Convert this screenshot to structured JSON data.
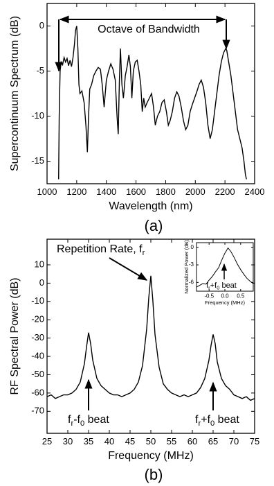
{
  "chart_data": [
    {
      "type": "line",
      "ylabel": "Supercontinuum Spectrum (dB)",
      "xlabel": "Wavelength (nm)",
      "panel_label": "(a)",
      "annotations": [
        [
          "Octave of Bandwidth"
        ]
      ],
      "color": "#000000",
      "x": [
        1078,
        1082,
        1088,
        1095,
        1105,
        1115,
        1125,
        1135,
        1145,
        1155,
        1165,
        1175,
        1185,
        1192,
        1200,
        1208,
        1215,
        1222,
        1235,
        1250,
        1262,
        1272,
        1280,
        1288,
        1300,
        1315,
        1330,
        1345,
        1360,
        1372,
        1385,
        1400,
        1415,
        1430,
        1445,
        1460,
        1472,
        1480,
        1488,
        1495,
        1505,
        1515,
        1528,
        1540,
        1552,
        1562,
        1572,
        1582,
        1595,
        1608,
        1620,
        1632,
        1642,
        1652,
        1662,
        1675,
        1690,
        1705,
        1718,
        1730,
        1745,
        1760,
        1775,
        1790,
        1805,
        1818,
        1830,
        1845,
        1860,
        1875,
        1890,
        1905,
        1920,
        1935,
        1950,
        1965,
        1980,
        1995,
        2010,
        2025,
        2040,
        2055,
        2070,
        2085,
        2100,
        2115,
        2130,
        2145,
        2160,
        2175,
        2190,
        2205,
        2212,
        2225,
        2240,
        2255,
        2270,
        2285,
        2300,
        2315,
        2328,
        2338,
        2345
      ],
      "values": [
        -17,
        -10,
        -5,
        -4,
        -4.3,
        -3.5,
        -4,
        -3.6,
        -4.4,
        -3.8,
        -4.5,
        -3.5,
        -2,
        -0.5,
        0,
        -2.5,
        -6.5,
        -7.5,
        -7.2,
        -8.5,
        -11,
        -14,
        -10,
        -7,
        -6.5,
        -5.5,
        -5,
        -4.6,
        -4.8,
        -6.5,
        -9,
        -6,
        -5,
        -4.2,
        -4.8,
        -6,
        -10,
        -12,
        -6,
        -2.5,
        -6.5,
        -8,
        -5.5,
        -4.5,
        -3.2,
        -4.5,
        -8,
        -5,
        -4,
        -3.8,
        -5,
        -6.5,
        -9.5,
        -8,
        -9,
        -8.5,
        -8,
        -7.5,
        -9,
        -11,
        -10,
        -9.5,
        -8.5,
        -8.2,
        -9.5,
        -11,
        -10.5,
        -9.5,
        -8,
        -7.3,
        -7.8,
        -9,
        -10.5,
        -11.5,
        -11,
        -9.5,
        -8.7,
        -8,
        -7.3,
        -6.5,
        -6,
        -6.8,
        -8.5,
        -11,
        -12.5,
        -11.5,
        -9.5,
        -7.5,
        -5.5,
        -4,
        -3,
        -2.5,
        -2.7,
        -4,
        -5.5,
        -7.5,
        -9.5,
        -11.5,
        -12.5,
        -13.5,
        -15,
        -16.5,
        -17
      ],
      "xlim": [
        1000,
        2400
      ],
      "xticks": [
        1000,
        1200,
        1400,
        1600,
        1800,
        2000,
        2200,
        2400
      ],
      "ylim": [
        -17.5,
        2.5
      ],
      "yticks": [
        0,
        -5,
        -10,
        -15
      ]
    },
    {
      "type": "line",
      "ylabel": "RF Spectral Power (dB)",
      "xlabel": "Frequency (MHz)",
      "panel_label": "(b)",
      "annotations": [
        [
          "Repetition Rate, f",
          "r"
        ],
        [
          "f",
          "r",
          "-f",
          "0",
          " beat"
        ],
        [
          "f",
          "r",
          "+f",
          "0",
          " beat"
        ]
      ],
      "color": "#000000",
      "x": [
        25,
        26,
        27,
        28,
        29,
        30,
        31,
        32,
        33,
        34,
        34.5,
        35,
        35.5,
        36,
        37,
        38,
        39,
        40,
        41,
        42,
        43,
        44,
        45,
        46,
        47,
        48,
        49,
        49.5,
        50,
        50.5,
        51,
        52,
        53,
        54,
        55,
        56,
        57,
        58,
        59,
        60,
        61,
        62,
        63,
        64,
        64.5,
        65,
        65.5,
        66,
        67,
        68,
        69,
        70,
        71,
        72,
        73,
        74,
        75
      ],
      "values": [
        -62,
        -61,
        -63,
        -62,
        -61,
        -61,
        -60,
        -58,
        -54,
        -44,
        -35,
        -27,
        -33,
        -42,
        -52,
        -56,
        -58,
        -60,
        -61,
        -61,
        -62,
        -61,
        -60,
        -58,
        -54,
        -45,
        -25,
        -8,
        4,
        -10,
        -28,
        -46,
        -55,
        -58,
        -60,
        -61,
        -62,
        -61,
        -62,
        -61,
        -60,
        -57,
        -52,
        -42,
        -34,
        -28,
        -33,
        -43,
        -52,
        -56,
        -58,
        -61,
        -62,
        -63,
        -62,
        -64,
        -63
      ],
      "xlim": [
        25,
        75
      ],
      "xticks": [
        25,
        30,
        35,
        40,
        45,
        50,
        55,
        60,
        65,
        70,
        75
      ],
      "ylim": [
        -82,
        24
      ],
      "yticks": [
        10,
        0,
        -10,
        -20,
        -30,
        -40,
        -50,
        -60,
        -70
      ]
    },
    {
      "type": "line",
      "ylabel": "Normalized Power (dB)",
      "xlabel": "Frequency (MHz)",
      "annotations": [
        [
          "f",
          "r",
          "+f",
          "0",
          " beat"
        ]
      ],
      "color": "#000000",
      "x": [
        -0.9,
        -0.8,
        -0.7,
        -0.6,
        -0.5,
        -0.4,
        -0.3,
        -0.2,
        -0.1,
        0,
        0.1,
        0.2,
        0.3,
        0.4,
        0.5,
        0.6,
        0.7,
        0.8,
        0.9
      ],
      "values": [
        -6.8,
        -6.5,
        -6.2,
        -6.3,
        -5.6,
        -5,
        -4.2,
        -3.5,
        -2.2,
        -1,
        -0.1,
        -0.8,
        -1.8,
        -2.9,
        -3.8,
        -4.6,
        -5.3,
        -5.8,
        -6.2
      ],
      "xlim": [
        -0.9,
        0.9
      ],
      "xticks": [
        -0.5,
        {
          "value": 0,
          "label": "0.0"
        },
        0.5
      ],
      "ylim": [
        -7.5,
        0.8
      ],
      "yticks": [
        0,
        -3,
        -6
      ]
    }
  ]
}
